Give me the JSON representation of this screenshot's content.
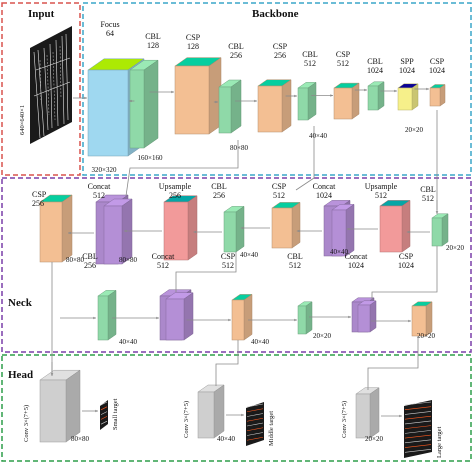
{
  "sections": {
    "input": "Input",
    "backbone": "Backbone",
    "neck": "Neck",
    "head": "Head"
  },
  "input_dims": "640×640×1",
  "backbone": [
    {
      "name": "Focus",
      "ch": "64",
      "dims": "320×320"
    },
    {
      "name": "CBL",
      "ch": "128",
      "dims": "160×160"
    },
    {
      "name": "CSP",
      "ch": "128",
      "dims": ""
    },
    {
      "name": "CBL",
      "ch": "256",
      "dims": "80×80"
    },
    {
      "name": "CSP",
      "ch": "256",
      "dims": ""
    },
    {
      "name": "CBL",
      "ch": "512",
      "dims": "40×40"
    },
    {
      "name": "CSP",
      "ch": "512",
      "dims": ""
    },
    {
      "name": "CBL",
      "ch": "1024",
      "dims": ""
    },
    {
      "name": "SPP",
      "ch": "1024",
      "dims": "20×20"
    },
    {
      "name": "CSP",
      "ch": "1024",
      "dims": ""
    }
  ],
  "neck_row1": [
    {
      "name": "CSP",
      "ch": "256",
      "dims": "80×80"
    },
    {
      "name": "Concat",
      "ch": "512",
      "dims": "80×80"
    },
    {
      "name": "Upsample",
      "ch": "256",
      "dims": ""
    },
    {
      "name": "CBL",
      "ch": "256",
      "dims": "40×40"
    },
    {
      "name": "CSP",
      "ch": "512",
      "dims": ""
    },
    {
      "name": "Concat",
      "ch": "1024",
      "dims": "40×40"
    },
    {
      "name": "Upsample",
      "ch": "512",
      "dims": ""
    },
    {
      "name": "CBL",
      "ch": "512",
      "dims": "20×20"
    }
  ],
  "neck_row2": [
    {
      "name": "CBL",
      "ch": "256",
      "dims": "40×40"
    },
    {
      "name": "Concat",
      "ch": "512",
      "dims": ""
    },
    {
      "name": "CSP",
      "ch": "512",
      "dims": "40×40"
    },
    {
      "name": "CBL",
      "ch": "512",
      "dims": "20×20"
    },
    {
      "name": "Concat",
      "ch": "1024",
      "dims": ""
    },
    {
      "name": "CSP",
      "ch": "1024",
      "dims": "20×20"
    }
  ],
  "head": [
    {
      "conv": "Conv 3×(7+5)",
      "dims": "80×80",
      "target": "Small target"
    },
    {
      "conv": "Conv 3×(7+5)",
      "dims": "40×40",
      "target": "Middle target"
    },
    {
      "conv": "Conv 3×(7+5)",
      "dims": "20×20",
      "target": "Large target"
    }
  ],
  "colors": {
    "focus": "#9fd8f0",
    "cbl": "#8fd9a8",
    "csp": "#f3bf93",
    "spp": "#f6f08a",
    "upsample": "#f29a9a",
    "concat": "#b48fd6",
    "conv": "#cfcfcf",
    "frame_input": "#d9534f",
    "frame_backbone": "#3aa6c9",
    "frame_neck": "#7a3fa8",
    "frame_head": "#2e9e4a"
  }
}
